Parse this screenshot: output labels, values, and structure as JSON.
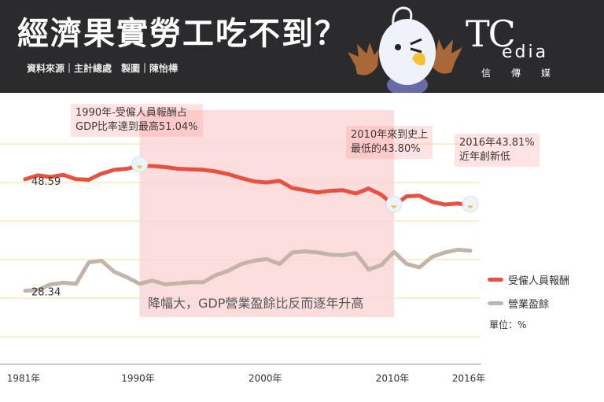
{
  "header": {
    "title": "經濟果實勞工吃不到？",
    "source": "資料來源｜主計總處　製圖｜陳怡樺"
  },
  "brand": {
    "logo_big": "TC",
    "logo_media": "edia",
    "subtitle": "信傳媒"
  },
  "annotations": {
    "peak": "1990年-受僱人員報酬占\nGDP比率達到最高51.04%",
    "low": "2010年來到史上\n最低的43.80%",
    "latest": "2016年43.81%\n近年創新低",
    "highlight": "降幅大，GDP營業盈餘比反而逐年升高"
  },
  "legend": {
    "series1": "受僱人員報酬",
    "series2": "營業盈餘",
    "unit": "單位：%"
  },
  "colors": {
    "series1": "#e8513f",
    "series2": "#c3b4aa",
    "highlight": "#fbd7d7",
    "header": "#2b2b2e"
  },
  "chart_data": {
    "type": "line",
    "x": [
      1981,
      1982,
      1983,
      1984,
      1985,
      1986,
      1987,
      1988,
      1989,
      1990,
      1991,
      1992,
      1993,
      1994,
      1995,
      1996,
      1997,
      1998,
      1999,
      2000,
      2001,
      2002,
      2003,
      2004,
      2005,
      2006,
      2007,
      2008,
      2009,
      2010,
      2011,
      2012,
      2013,
      2014,
      2015,
      2016
    ],
    "xticks": [
      "1981年",
      "1990年",
      "2000年",
      "2010年",
      "2016年"
    ],
    "series": [
      {
        "name": "受僱人員報酬",
        "start_label": "48.59",
        "values": [
          48.59,
          49.3,
          49.0,
          49.4,
          48.6,
          48.5,
          49.6,
          50.3,
          50.5,
          51.04,
          51.0,
          50.8,
          50.5,
          50.4,
          50.3,
          50.0,
          49.5,
          48.8,
          48.2,
          48.0,
          48.3,
          47.0,
          46.6,
          46.2,
          46.5,
          46.6,
          46.0,
          46.9,
          45.8,
          43.8,
          45.5,
          45.6,
          44.5,
          44.0,
          44.2,
          43.81
        ]
      },
      {
        "name": "營業盈餘",
        "start_label": "28.34",
        "values": [
          28.34,
          28.5,
          29.5,
          29.8,
          29.6,
          33.5,
          33.8,
          31.8,
          30.8,
          29.6,
          30.2,
          29.5,
          29.7,
          29.9,
          29.9,
          31.2,
          32.0,
          33.2,
          33.8,
          34.1,
          33.2,
          35.3,
          35.5,
          35.3,
          34.9,
          34.8,
          35.2,
          32.2,
          33.0,
          35.4,
          33.2,
          32.6,
          34.5,
          35.3,
          35.8,
          35.6
        ]
      }
    ],
    "highlight_range": [
      1990,
      2010
    ],
    "ylim": [
      15,
      60
    ],
    "grid": true,
    "legend_position": "right"
  }
}
